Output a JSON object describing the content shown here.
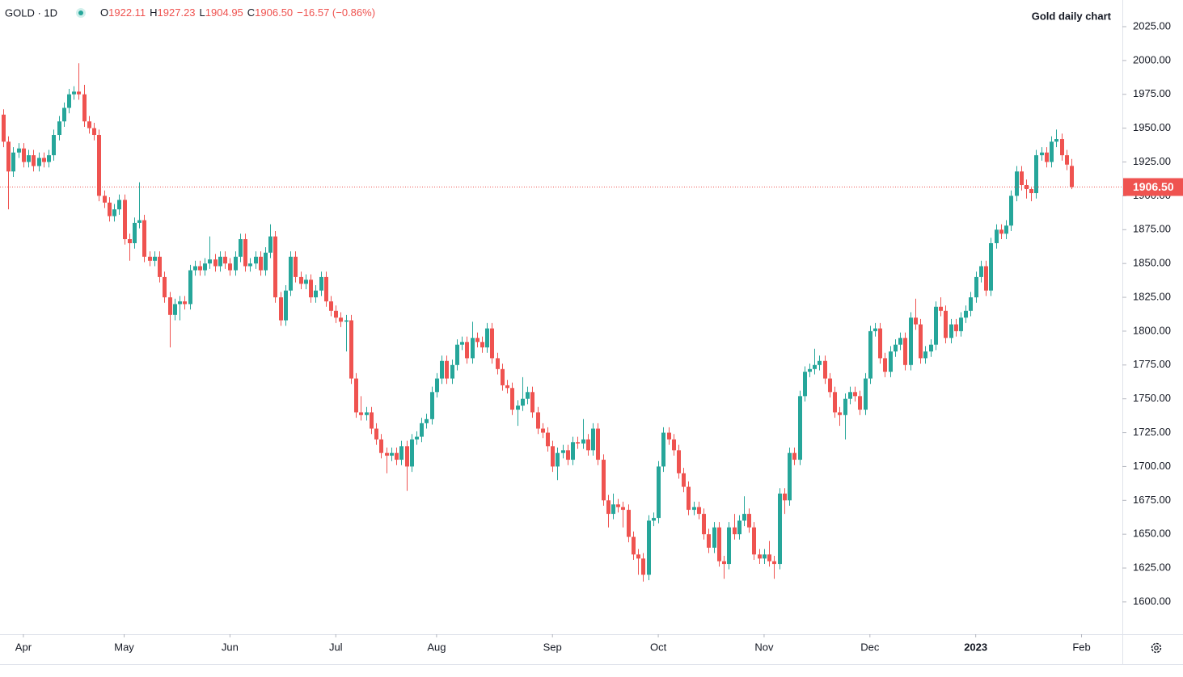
{
  "chart_data": {
    "type": "candlestick",
    "symbol": "GOLD · 1D",
    "ohlc": [
      {
        "key": "O",
        "value": "1922.11"
      },
      {
        "key": "H",
        "value": "1927.23"
      },
      {
        "key": "L",
        "value": "1904.95"
      },
      {
        "key": "C",
        "value": "1906.50"
      }
    ],
    "change": "−16.57 (−0.86%)",
    "title": "Gold daily chart",
    "up_color": "#26a69a",
    "down_color": "#ef5350",
    "last_price": {
      "value": 1906.5,
      "label": "1906.50"
    },
    "xlim": [
      -0.64,
      222.1
    ],
    "xticks": [
      {
        "value": 4,
        "label": "Apr"
      },
      {
        "value": 24,
        "label": "May"
      },
      {
        "value": 45,
        "label": "Jun"
      },
      {
        "value": 66,
        "label": "Jul"
      },
      {
        "value": 86,
        "label": "Aug"
      },
      {
        "value": 109,
        "label": "Sep"
      },
      {
        "value": 130,
        "label": "Oct"
      },
      {
        "value": 151,
        "label": "Nov"
      },
      {
        "value": 172,
        "label": "Dec"
      },
      {
        "value": 193,
        "label": "2023"
      },
      {
        "value": 214,
        "label": "Feb"
      }
    ],
    "ylim": [
      1576.1,
      2044.7
    ],
    "yticks": [
      {
        "value": 1600,
        "label": "1600.00"
      },
      {
        "value": 1625,
        "label": "1625.00"
      },
      {
        "value": 1650,
        "label": "1650.00"
      },
      {
        "value": 1675,
        "label": "1675.00"
      },
      {
        "value": 1700,
        "label": "1700.00"
      },
      {
        "value": 1725,
        "label": "1725.00"
      },
      {
        "value": 1750,
        "label": "1750.00"
      },
      {
        "value": 1775,
        "label": "1775.00"
      },
      {
        "value": 1800,
        "label": "1800.00"
      },
      {
        "value": 1825,
        "label": "1825.00"
      },
      {
        "value": 1850,
        "label": "1850.00"
      },
      {
        "value": 1875,
        "label": "1875.00"
      },
      {
        "value": 1900,
        "label": "1900.00"
      },
      {
        "value": 1925,
        "label": "1925.00"
      },
      {
        "value": 1950,
        "label": "1950.00"
      },
      {
        "value": 1975,
        "label": "1975.00"
      },
      {
        "value": 2000,
        "label": "2000.00"
      },
      {
        "value": 2025,
        "label": "2025.00"
      }
    ],
    "open": [
      1960,
      1940,
      1918,
      1932,
      1935,
      1925,
      1930,
      1922,
      1928,
      1925,
      1930,
      1945,
      1955,
      1965,
      1975,
      1977,
      1975,
      1955,
      1950,
      1945,
      1900,
      1895,
      1885,
      1890,
      1897,
      1868,
      1865,
      1880,
      1882,
      1855,
      1852,
      1855,
      1840,
      1825,
      1812,
      1820,
      1822,
      1820,
      1845,
      1848,
      1845,
      1850,
      1853,
      1848,
      1855,
      1850,
      1845,
      1855,
      1868,
      1848,
      1850,
      1855,
      1845,
      1858,
      1870,
      1825,
      1808,
      1830,
      1855,
      1840,
      1835,
      1838,
      1825,
      1830,
      1840,
      1822,
      1815,
      1810,
      1807,
      1808,
      1765,
      1740,
      1738,
      1740,
      1728,
      1720,
      1710,
      1708,
      1710,
      1705,
      1715,
      1700,
      1720,
      1722,
      1732,
      1735,
      1755,
      1765,
      1778,
      1765,
      1775,
      1790,
      1792,
      1780,
      1795,
      1792,
      1788,
      1802,
      1780,
      1772,
      1760,
      1758,
      1742,
      1745,
      1750,
      1755,
      1740,
      1728,
      1725,
      1715,
      1700,
      1710,
      1712,
      1705,
      1718,
      1717,
      1720,
      1712,
      1728,
      1705,
      1675,
      1665,
      1672,
      1670,
      1668,
      1648,
      1635,
      1632,
      1620,
      1660,
      1662,
      1700,
      1725,
      1720,
      1712,
      1695,
      1685,
      1668,
      1670,
      1665,
      1650,
      1640,
      1655,
      1630,
      1628,
      1655,
      1650,
      1660,
      1665,
      1655,
      1635,
      1632,
      1635,
      1630,
      1628,
      1680,
      1675,
      1710,
      1705,
      1752,
      1770,
      1772,
      1775,
      1778,
      1765,
      1755,
      1740,
      1738,
      1750,
      1755,
      1752,
      1742,
      1765,
      1800,
      1802,
      1780,
      1770,
      1785,
      1790,
      1795,
      1775,
      1810,
      1805,
      1780,
      1785,
      1790,
      1818,
      1815,
      1795,
      1805,
      1800,
      1810,
      1815,
      1825,
      1840,
      1848,
      1830,
      1865,
      1875,
      1872,
      1878,
      1900,
      1918,
      1908,
      1905,
      1902,
      1930,
      1932,
      1925,
      1940,
      1942,
      1930,
      1922.11
    ],
    "high": [
      1964,
      1944,
      1936,
      1939,
      1939,
      1934,
      1934,
      1932,
      1932,
      1934,
      1949,
      1959,
      1969,
      1979,
      1981,
      1998,
      1982,
      1959,
      1954,
      1949,
      1904,
      1899,
      1894,
      1901,
      1901,
      1872,
      1884,
      1910,
      1886,
      1859,
      1859,
      1859,
      1844,
      1829,
      1824,
      1826,
      1826,
      1849,
      1852,
      1852,
      1854,
      1870,
      1857,
      1859,
      1859,
      1854,
      1859,
      1872,
      1872,
      1854,
      1859,
      1859,
      1862,
      1879,
      1874,
      1829,
      1834,
      1859,
      1859,
      1844,
      1842,
      1842,
      1834,
      1844,
      1844,
      1826,
      1819,
      1814,
      1812,
      1812,
      1769,
      1752,
      1744,
      1744,
      1732,
      1724,
      1714,
      1714,
      1714,
      1719,
      1719,
      1724,
      1726,
      1736,
      1739,
      1759,
      1769,
      1782,
      1782,
      1779,
      1794,
      1796,
      1796,
      1807,
      1799,
      1796,
      1806,
      1806,
      1784,
      1776,
      1764,
      1762,
      1749,
      1766,
      1759,
      1759,
      1744,
      1732,
      1729,
      1719,
      1714,
      1716,
      1716,
      1722,
      1722,
      1735,
      1724,
      1732,
      1732,
      1709,
      1679,
      1680,
      1676,
      1674,
      1672,
      1652,
      1639,
      1636,
      1664,
      1666,
      1704,
      1729,
      1729,
      1724,
      1716,
      1699,
      1689,
      1674,
      1674,
      1669,
      1654,
      1659,
      1659,
      1634,
      1659,
      1665,
      1664,
      1678,
      1669,
      1659,
      1639,
      1639,
      1645,
      1634,
      1684,
      1684,
      1714,
      1714,
      1756,
      1774,
      1776,
      1787,
      1782,
      1782,
      1769,
      1759,
      1744,
      1754,
      1759,
      1759,
      1756,
      1769,
      1804,
      1806,
      1806,
      1784,
      1789,
      1794,
      1799,
      1799,
      1814,
      1824,
      1809,
      1789,
      1794,
      1822,
      1825,
      1819,
      1809,
      1809,
      1814,
      1819,
      1829,
      1844,
      1852,
      1852,
      1869,
      1879,
      1879,
      1882,
      1904,
      1922,
      1922,
      1912,
      1906,
      1934,
      1936,
      1936,
      1944,
      1949,
      1946,
      1934,
      1927.23
    ],
    "low": [
      1936,
      1890,
      1914,
      1928,
      1921,
      1921,
      1918,
      1918,
      1921,
      1921,
      1926,
      1941,
      1951,
      1961,
      1971,
      1971,
      1951,
      1946,
      1941,
      1896,
      1891,
      1881,
      1881,
      1886,
      1864,
      1852,
      1861,
      1876,
      1851,
      1848,
      1848,
      1836,
      1821,
      1788,
      1808,
      1808,
      1816,
      1816,
      1841,
      1841,
      1841,
      1846,
      1844,
      1844,
      1846,
      1841,
      1841,
      1851,
      1844,
      1844,
      1846,
      1841,
      1841,
      1854,
      1821,
      1804,
      1804,
      1826,
      1836,
      1831,
      1831,
      1821,
      1821,
      1826,
      1818,
      1811,
      1806,
      1803,
      1785,
      1761,
      1736,
      1734,
      1734,
      1724,
      1716,
      1706,
      1695,
      1704,
      1701,
      1701,
      1682,
      1696,
      1716,
      1718,
      1728,
      1731,
      1751,
      1761,
      1761,
      1761,
      1771,
      1786,
      1776,
      1776,
      1788,
      1784,
      1784,
      1776,
      1768,
      1756,
      1754,
      1738,
      1730,
      1741,
      1746,
      1736,
      1724,
      1721,
      1711,
      1696,
      1690,
      1706,
      1701,
      1701,
      1713,
      1713,
      1708,
      1708,
      1701,
      1671,
      1655,
      1661,
      1666,
      1655,
      1644,
      1631,
      1620,
      1615,
      1616,
      1656,
      1658,
      1696,
      1716,
      1708,
      1691,
      1681,
      1664,
      1664,
      1661,
      1646,
      1636,
      1636,
      1626,
      1617,
      1624,
      1646,
      1646,
      1656,
      1651,
      1631,
      1628,
      1628,
      1626,
      1617,
      1624,
      1665,
      1671,
      1701,
      1701,
      1748,
      1766,
      1768,
      1771,
      1761,
      1751,
      1736,
      1730,
      1720,
      1746,
      1748,
      1738,
      1738,
      1761,
      1796,
      1776,
      1766,
      1766,
      1781,
      1786,
      1771,
      1771,
      1801,
      1776,
      1776,
      1781,
      1786,
      1811,
      1791,
      1791,
      1796,
      1796,
      1806,
      1811,
      1821,
      1836,
      1826,
      1826,
      1861,
      1868,
      1868,
      1874,
      1896,
      1904,
      1898,
      1896,
      1898,
      1926,
      1921,
      1921,
      1936,
      1926,
      1919,
      1904.95
    ],
    "close": [
      1940,
      1918,
      1932,
      1935,
      1925,
      1930,
      1922,
      1928,
      1925,
      1930,
      1945,
      1955,
      1965,
      1975,
      1977,
      1975,
      1955,
      1950,
      1945,
      1900,
      1895,
      1885,
      1890,
      1897,
      1868,
      1865,
      1880,
      1882,
      1855,
      1852,
      1855,
      1840,
      1825,
      1812,
      1820,
      1822,
      1820,
      1845,
      1848,
      1845,
      1850,
      1853,
      1848,
      1855,
      1850,
      1845,
      1855,
      1868,
      1848,
      1850,
      1855,
      1845,
      1858,
      1870,
      1825,
      1808,
      1830,
      1855,
      1840,
      1835,
      1838,
      1825,
      1830,
      1840,
      1822,
      1815,
      1810,
      1807,
      1808,
      1765,
      1740,
      1738,
      1740,
      1728,
      1720,
      1710,
      1708,
      1710,
      1705,
      1715,
      1700,
      1720,
      1722,
      1732,
      1735,
      1755,
      1765,
      1778,
      1765,
      1775,
      1790,
      1792,
      1780,
      1795,
      1792,
      1788,
      1802,
      1780,
      1772,
      1760,
      1758,
      1742,
      1745,
      1750,
      1755,
      1740,
      1728,
      1725,
      1715,
      1700,
      1710,
      1712,
      1705,
      1718,
      1717,
      1720,
      1712,
      1728,
      1705,
      1675,
      1665,
      1672,
      1670,
      1668,
      1648,
      1635,
      1632,
      1620,
      1660,
      1662,
      1700,
      1725,
      1720,
      1712,
      1695,
      1685,
      1668,
      1670,
      1665,
      1650,
      1640,
      1655,
      1630,
      1628,
      1655,
      1650,
      1660,
      1665,
      1655,
      1635,
      1632,
      1635,
      1630,
      1628,
      1680,
      1675,
      1710,
      1705,
      1752,
      1770,
      1772,
      1775,
      1778,
      1765,
      1755,
      1740,
      1738,
      1750,
      1755,
      1752,
      1742,
      1765,
      1800,
      1802,
      1780,
      1770,
      1785,
      1790,
      1795,
      1775,
      1810,
      1805,
      1780,
      1785,
      1790,
      1818,
      1815,
      1795,
      1805,
      1800,
      1810,
      1815,
      1825,
      1840,
      1848,
      1830,
      1865,
      1875,
      1872,
      1878,
      1900,
      1918,
      1908,
      1905,
      1902,
      1930,
      1932,
      1925,
      1940,
      1942,
      1930,
      1923.07,
      1906.5
    ]
  }
}
